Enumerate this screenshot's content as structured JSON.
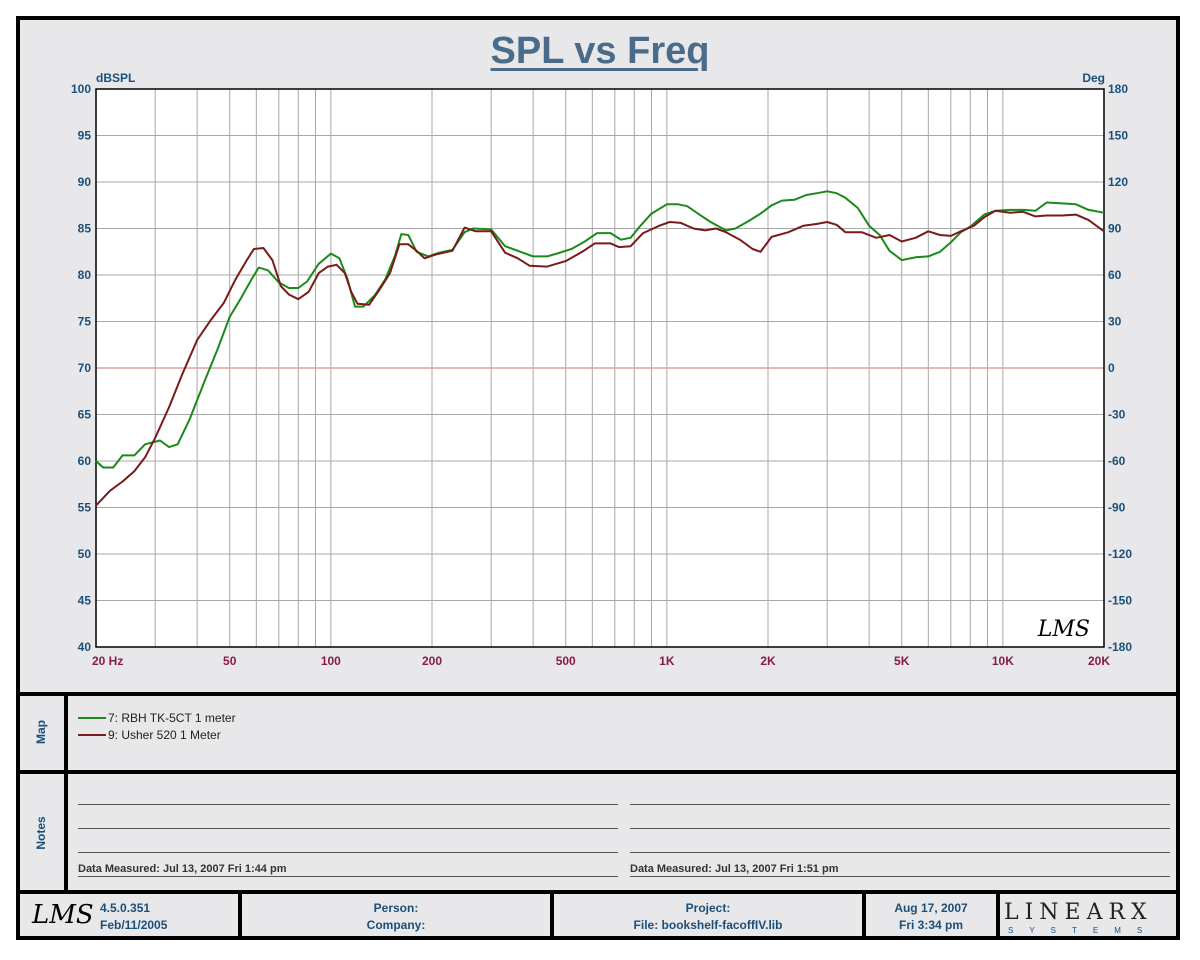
{
  "chart_data": {
    "type": "line",
    "title": "SPL vs Freq",
    "ylabel": "dBSPL",
    "y2label": "Deg",
    "xscale": "log",
    "xlim": [
      20,
      20000
    ],
    "ylim": [
      40,
      100
    ],
    "y2lim": [
      -180,
      180
    ],
    "x_ticks": [
      20,
      50,
      100,
      200,
      500,
      1000,
      2000,
      5000,
      10000,
      20000
    ],
    "x_tick_labels": [
      "20  Hz",
      "50",
      "100",
      "200",
      "500",
      "1K",
      "2K",
      "5K",
      "10K",
      "20K"
    ],
    "y_ticks": [
      40,
      45,
      50,
      55,
      60,
      65,
      70,
      75,
      80,
      85,
      90,
      95,
      100
    ],
    "y2_ticks": [
      -180,
      -150,
      -120,
      -90,
      -60,
      -30,
      0,
      30,
      60,
      90,
      120,
      150,
      180
    ],
    "grid": true,
    "reference_line": {
      "y": 70,
      "color": "#e0a0a0"
    },
    "series": [
      {
        "name": "7: RBH TK-5CT 1 meter",
        "color": "#1a8a1a",
        "points": [
          [
            20,
            60
          ],
          [
            21,
            59.3
          ],
          [
            22.5,
            59.3
          ],
          [
            24,
            60.6
          ],
          [
            26,
            60.6
          ],
          [
            28,
            61.8
          ],
          [
            31,
            62.2
          ],
          [
            33,
            61.5
          ],
          [
            35,
            61.8
          ],
          [
            38,
            64.5
          ],
          [
            42,
            68.5
          ],
          [
            46,
            72
          ],
          [
            50,
            75.5
          ],
          [
            54,
            77.5
          ],
          [
            58,
            79.5
          ],
          [
            61,
            80.8
          ],
          [
            65,
            80.5
          ],
          [
            70,
            79.2
          ],
          [
            75,
            78.6
          ],
          [
            80,
            78.6
          ],
          [
            85,
            79.3
          ],
          [
            92,
            81.2
          ],
          [
            100,
            82.3
          ],
          [
            106,
            81.8
          ],
          [
            112,
            79.6
          ],
          [
            118,
            76.6
          ],
          [
            125,
            76.6
          ],
          [
            135,
            77.8
          ],
          [
            145,
            79.5
          ],
          [
            155,
            82
          ],
          [
            162,
            84.4
          ],
          [
            170,
            84.3
          ],
          [
            180,
            82.5
          ],
          [
            195,
            82
          ],
          [
            210,
            82.4
          ],
          [
            230,
            82.7
          ],
          [
            250,
            84.6
          ],
          [
            265,
            85
          ],
          [
            300,
            84.9
          ],
          [
            330,
            83.1
          ],
          [
            360,
            82.6
          ],
          [
            400,
            82
          ],
          [
            440,
            82
          ],
          [
            480,
            82.4
          ],
          [
            520,
            82.8
          ],
          [
            570,
            83.6
          ],
          [
            620,
            84.5
          ],
          [
            680,
            84.5
          ],
          [
            730,
            83.8
          ],
          [
            780,
            84
          ],
          [
            830,
            85.2
          ],
          [
            900,
            86.6
          ],
          [
            1000,
            87.6
          ],
          [
            1080,
            87.6
          ],
          [
            1150,
            87.4
          ],
          [
            1250,
            86.5
          ],
          [
            1350,
            85.7
          ],
          [
            1500,
            84.8
          ],
          [
            1600,
            85
          ],
          [
            1750,
            85.8
          ],
          [
            1900,
            86.6
          ],
          [
            2050,
            87.5
          ],
          [
            2200,
            88
          ],
          [
            2400,
            88.1
          ],
          [
            2600,
            88.6
          ],
          [
            2800,
            88.8
          ],
          [
            3000,
            89
          ],
          [
            3200,
            88.8
          ],
          [
            3400,
            88.3
          ],
          [
            3700,
            87.2
          ],
          [
            4000,
            85.3
          ],
          [
            4300,
            84.3
          ],
          [
            4600,
            82.6
          ],
          [
            5000,
            81.6
          ],
          [
            5500,
            81.9
          ],
          [
            6000,
            82
          ],
          [
            6500,
            82.5
          ],
          [
            7000,
            83.5
          ],
          [
            7500,
            84.6
          ],
          [
            8000,
            85.2
          ],
          [
            8800,
            86.5
          ],
          [
            9500,
            86.9
          ],
          [
            10500,
            87
          ],
          [
            11500,
            87
          ],
          [
            12500,
            86.9
          ],
          [
            13500,
            87.8
          ],
          [
            15000,
            87.7
          ],
          [
            16500,
            87.6
          ],
          [
            18000,
            87
          ],
          [
            20000,
            86.7
          ]
        ]
      },
      {
        "name": "9: Usher 520  1 Meter",
        "color": "#7a1a1a",
        "points": [
          [
            20,
            55.2
          ],
          [
            22,
            56.8
          ],
          [
            24,
            57.8
          ],
          [
            26,
            58.9
          ],
          [
            28,
            60.4
          ],
          [
            30,
            62.5
          ],
          [
            33,
            65.8
          ],
          [
            36,
            69.2
          ],
          [
            40,
            73
          ],
          [
            44,
            75.2
          ],
          [
            48,
            77
          ],
          [
            52,
            79.5
          ],
          [
            56,
            81.5
          ],
          [
            59,
            82.8
          ],
          [
            63,
            82.9
          ],
          [
            67,
            81.6
          ],
          [
            71,
            78.8
          ],
          [
            75,
            77.9
          ],
          [
            80,
            77.4
          ],
          [
            86,
            78.2
          ],
          [
            92,
            80.2
          ],
          [
            98,
            80.9
          ],
          [
            104,
            81.1
          ],
          [
            110,
            80.2
          ],
          [
            115,
            78.2
          ],
          [
            120,
            76.9
          ],
          [
            130,
            76.8
          ],
          [
            140,
            78.5
          ],
          [
            150,
            80.2
          ],
          [
            160,
            83.3
          ],
          [
            170,
            83.3
          ],
          [
            180,
            82.6
          ],
          [
            190,
            81.8
          ],
          [
            205,
            82.2
          ],
          [
            230,
            82.6
          ],
          [
            250,
            85.1
          ],
          [
            270,
            84.7
          ],
          [
            300,
            84.7
          ],
          [
            330,
            82.4
          ],
          [
            360,
            81.8
          ],
          [
            390,
            81
          ],
          [
            440,
            80.9
          ],
          [
            500,
            81.5
          ],
          [
            560,
            82.5
          ],
          [
            610,
            83.4
          ],
          [
            680,
            83.4
          ],
          [
            720,
            83
          ],
          [
            780,
            83.1
          ],
          [
            850,
            84.5
          ],
          [
            950,
            85.3
          ],
          [
            1020,
            85.7
          ],
          [
            1100,
            85.6
          ],
          [
            1200,
            85
          ],
          [
            1300,
            84.8
          ],
          [
            1400,
            85
          ],
          [
            1500,
            84.6
          ],
          [
            1650,
            83.8
          ],
          [
            1800,
            82.8
          ],
          [
            1900,
            82.5
          ],
          [
            2050,
            84.1
          ],
          [
            2300,
            84.6
          ],
          [
            2550,
            85.3
          ],
          [
            2800,
            85.5
          ],
          [
            3000,
            85.7
          ],
          [
            3200,
            85.4
          ],
          [
            3400,
            84.6
          ],
          [
            3800,
            84.6
          ],
          [
            4200,
            84
          ],
          [
            4600,
            84.3
          ],
          [
            5000,
            83.6
          ],
          [
            5500,
            84
          ],
          [
            6000,
            84.7
          ],
          [
            6500,
            84.3
          ],
          [
            7000,
            84.2
          ],
          [
            7500,
            84.7
          ],
          [
            8200,
            85.3
          ],
          [
            8800,
            86.2
          ],
          [
            9500,
            86.9
          ],
          [
            10500,
            86.7
          ],
          [
            11500,
            86.8
          ],
          [
            12500,
            86.3
          ],
          [
            13500,
            86.4
          ],
          [
            15000,
            86.4
          ],
          [
            16500,
            86.5
          ],
          [
            18000,
            85.9
          ],
          [
            20000,
            84.7
          ]
        ]
      }
    ]
  },
  "map_section": {
    "label": "Map",
    "entries": [
      {
        "label": "7: RBH TK-5CT 1 meter",
        "color": "#1a8a1a"
      },
      {
        "label": "9: Usher 520  1 Meter",
        "color": "#7a1a1a"
      }
    ]
  },
  "notes_section": {
    "label": "Notes",
    "left_measured": "Data Measured: Jul 13, 2007  Fri  1:44 pm",
    "right_measured": "Data Measured: Jul 13, 2007  Fri  1:51 pm"
  },
  "footer": {
    "logo_lms": "LMS",
    "version": "4.5.0.351",
    "version_date": "Feb/11/2005",
    "person_label": "Person:",
    "company_label": "Company:",
    "project_label": "Project:",
    "file_label": "File: bookshelf-facoffIV.lib",
    "date": "Aug 17, 2007",
    "time": "Fri  3:34 pm",
    "brand_linear": "LINEARX",
    "brand_systems": "SYSTEMS"
  },
  "watermark": "LMS"
}
